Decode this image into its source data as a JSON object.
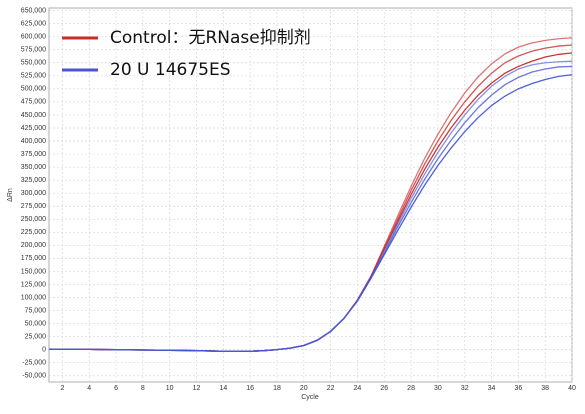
{
  "chart_data": {
    "type": "line",
    "x_label": "Cycle",
    "y_label": "ΔRn",
    "x": [
      1,
      2,
      3,
      4,
      5,
      6,
      7,
      8,
      9,
      10,
      11,
      12,
      13,
      14,
      15,
      16,
      17,
      18,
      19,
      20,
      21,
      22,
      23,
      24,
      25,
      26,
      27,
      28,
      29,
      30,
      31,
      32,
      33,
      34,
      35,
      36,
      37,
      38,
      39,
      40
    ],
    "series": [
      {
        "name": "Control：无RNase抑制剂",
        "color": "#cc2a2a",
        "values": [
          [
            1000,
            1000,
            800,
            500,
            200,
            0,
            -300,
            -600,
            -900,
            -1200,
            -1500,
            -2000,
            -2500,
            -3000,
            -3200,
            -3000,
            -2000,
            0,
            3000,
            8000,
            18000,
            35000,
            60000,
            95000,
            140000,
            198000,
            256000,
            313000,
            366000,
            413000,
            455000,
            492000,
            523000,
            548000,
            567000,
            580000,
            588000,
            593000,
            596000,
            598000
          ],
          [
            1000,
            1000,
            800,
            500,
            200,
            0,
            -300,
            -600,
            -900,
            -1200,
            -1500,
            -2000,
            -2500,
            -3000,
            -3200,
            -3000,
            -2000,
            0,
            3000,
            8000,
            18000,
            35000,
            60000,
            95000,
            140000,
            195000,
            250000,
            305000,
            355000,
            400000,
            440000,
            475000,
            505000,
            530000,
            550000,
            563000,
            572000,
            578000,
            582000,
            584000
          ],
          [
            1000,
            1000,
            800,
            500,
            200,
            0,
            -300,
            -600,
            -900,
            -1200,
            -1500,
            -2000,
            -2500,
            -3000,
            -3200,
            -3000,
            -2000,
            0,
            3000,
            8000,
            18000,
            35000,
            60000,
            95000,
            140000,
            193000,
            245000,
            297000,
            345000,
            388000,
            426000,
            459000,
            488000,
            511000,
            530000,
            543000,
            553000,
            561000,
            566000,
            569000
          ]
        ]
      },
      {
        "name": "20 U 14675ES",
        "color": "#4557d6",
        "values": [
          [
            1000,
            1000,
            800,
            500,
            200,
            0,
            -300,
            -600,
            -900,
            -1200,
            -1500,
            -2000,
            -2500,
            -3000,
            -3200,
            -3000,
            -2000,
            0,
            3000,
            8000,
            18000,
            35000,
            60000,
            94000,
            138000,
            188000,
            240000,
            290000,
            336000,
            378000,
            416000,
            450000,
            480000,
            505000,
            524000,
            538000,
            546000,
            550000,
            552000,
            553000
          ],
          [
            1000,
            1000,
            800,
            500,
            200,
            0,
            -300,
            -600,
            -900,
            -1200,
            -1500,
            -2000,
            -2500,
            -3000,
            -3200,
            -3000,
            -2000,
            0,
            3000,
            8000,
            18000,
            35000,
            60000,
            94000,
            138000,
            185000,
            235000,
            282000,
            326000,
            366000,
            402000,
            435000,
            464000,
            488000,
            508000,
            522000,
            532000,
            538000,
            542000,
            543000
          ],
          [
            1000,
            1000,
            800,
            500,
            200,
            0,
            -300,
            -600,
            -900,
            -1200,
            -1500,
            -2000,
            -2500,
            -3000,
            -3200,
            -3000,
            -2000,
            0,
            3000,
            8000,
            18000,
            35000,
            60000,
            93000,
            136000,
            182000,
            228000,
            273000,
            315000,
            353000,
            387000,
            418000,
            445000,
            468000,
            486000,
            500000,
            510000,
            518000,
            524000,
            527000
          ]
        ]
      }
    ],
    "xlim": [
      1,
      40
    ],
    "xticks": [
      2,
      4,
      6,
      8,
      10,
      12,
      14,
      16,
      18,
      20,
      22,
      24,
      26,
      28,
      30,
      32,
      34,
      36,
      38,
      40
    ],
    "ylim": [
      -62000,
      655000
    ],
    "yticks": [
      {
        "value": -50000,
        "label": "-50,000"
      },
      {
        "value": -25000,
        "label": "-25,000"
      },
      0,
      {
        "value": 25000,
        "label": "25,000"
      },
      {
        "value": 50000,
        "label": "50,000"
      },
      {
        "value": 75000,
        "label": "75,000"
      },
      {
        "value": 100000,
        "label": "100,000"
      },
      {
        "value": 125000,
        "label": "125,000"
      },
      {
        "value": 150000,
        "label": "150,000"
      },
      {
        "value": 175000,
        "label": "175,000"
      },
      {
        "value": 200000,
        "label": "200,000"
      },
      {
        "value": 225000,
        "label": "225,000"
      },
      {
        "value": 250000,
        "label": "250,000"
      },
      {
        "value": 275000,
        "label": "275,000"
      },
      {
        "value": 300000,
        "label": "300,000"
      },
      {
        "value": 325000,
        "label": "325,000"
      },
      {
        "value": 350000,
        "label": "350,000"
      },
      {
        "value": 375000,
        "label": "375,000"
      },
      {
        "value": 400000,
        "label": "400,000"
      },
      {
        "value": 425000,
        "label": "425,000"
      },
      {
        "value": 450000,
        "label": "450,000"
      },
      {
        "value": 475000,
        "label": "475,000"
      },
      {
        "value": 500000,
        "label": "500,000"
      },
      {
        "value": 525000,
        "label": "525,000"
      },
      {
        "value": 550000,
        "label": "550,000"
      },
      {
        "value": 575000,
        "label": "575,000"
      },
      {
        "value": 600000,
        "label": "600,000"
      },
      {
        "value": 625000,
        "label": "625,000"
      },
      {
        "value": 650000,
        "label": "650,000"
      }
    ],
    "grid": true
  }
}
